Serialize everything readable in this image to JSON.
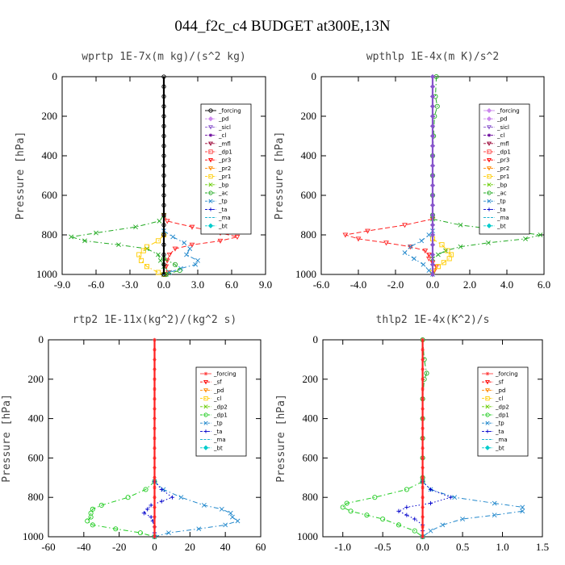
{
  "title": "044_f2c_c4  BUDGET at300E,13N",
  "chart_data": [
    {
      "type": "line",
      "title": "wprtp  1E-7x(m kg)/(s^2 kg)",
      "ylabel": "Pressure [hPa]",
      "xlim": [
        -9,
        9
      ],
      "ylim": [
        1000,
        0
      ],
      "xticks": [
        "-9.0",
        "-6.0",
        "-3.0",
        "0.0",
        "3.0",
        "6.0",
        "9.0"
      ],
      "yticks": [
        "0",
        "200",
        "400",
        "600",
        "800",
        "1000"
      ],
      "legend_position": "top-right",
      "legend": [
        {
          "name": "_forcing",
          "color": "#000000",
          "marker": "circle"
        },
        {
          "name": "_pd",
          "color": "#cc88ee",
          "marker": "diamond"
        },
        {
          "name": "_sicl",
          "color": "#8855cc",
          "marker": "tri"
        },
        {
          "name": "_cl",
          "color": "#660099",
          "marker": "star"
        },
        {
          "name": "_mfl",
          "color": "#990033",
          "marker": "tri"
        },
        {
          "name": "_dp1",
          "color": "#ff4444",
          "marker": "square"
        },
        {
          "name": "_pr3",
          "color": "#ff0000",
          "marker": "tri"
        },
        {
          "name": "_pr2",
          "color": "#ff8800",
          "marker": "tri"
        },
        {
          "name": "_pr1",
          "color": "#ffcc00",
          "marker": "square"
        },
        {
          "name": "_bp",
          "color": "#66cc00",
          "marker": "x"
        },
        {
          "name": "_ac",
          "color": "#22aa22",
          "marker": "circle"
        },
        {
          "name": "_tp",
          "color": "#2288cc",
          "marker": "x"
        },
        {
          "name": "_ta",
          "color": "#0000cc",
          "marker": "plus"
        },
        {
          "name": "_ma",
          "color": "#00aacc",
          "marker": "none"
        },
        {
          "name": "_bt",
          "color": "#00cccc",
          "marker": "diamond"
        }
      ],
      "series": [
        {
          "name": "_pr3",
          "color": "#ff2222",
          "style": "dash",
          "p": [
            700,
            730,
            760,
            790,
            810,
            830,
            850,
            870,
            900,
            930,
            960,
            990,
            1000
          ],
          "v": [
            0,
            0.3,
            2.5,
            5.0,
            6.5,
            5.0,
            2.5,
            1.0,
            0.5,
            0.3,
            0.2,
            0.4,
            0.2
          ]
        },
        {
          "name": "_bp",
          "color": "#22aa22",
          "style": "dashdot",
          "p": [
            700,
            730,
            760,
            790,
            810,
            830,
            850,
            870,
            900,
            930,
            960,
            990,
            1000
          ],
          "v": [
            0,
            -0.4,
            -2.5,
            -6.0,
            -8.2,
            -7.0,
            -4.0,
            -1.5,
            -0.5,
            -0.3,
            0,
            0.5,
            0.2
          ]
        },
        {
          "name": "_pr1",
          "color": "#ffcc00",
          "style": "dashdot",
          "p": [
            800,
            830,
            860,
            880,
            900,
            930,
            960,
            990,
            1000
          ],
          "v": [
            0,
            -0.5,
            -1.5,
            -1.8,
            -2.2,
            -2.0,
            -1.5,
            -0.5,
            0
          ]
        },
        {
          "name": "_tp",
          "color": "#2288cc",
          "style": "dashdot",
          "p": [
            780,
            810,
            840,
            870,
            900,
            930,
            950,
            970,
            990,
            1000
          ],
          "v": [
            0,
            0.8,
            1.8,
            2.3,
            2.0,
            3.0,
            2.8,
            1.5,
            0.5,
            0
          ]
        },
        {
          "name": "_ac",
          "color": "#22aa22",
          "style": "dashdot",
          "p": [
            920,
            950,
            980,
            1000
          ],
          "v": [
            0,
            1.0,
            1.4,
            0.2
          ]
        },
        {
          "name": "_forcing",
          "color": "#000000",
          "style": "solid",
          "p": [
            0,
            50,
            100,
            150,
            200,
            250,
            300,
            350,
            400,
            450,
            500,
            550,
            600,
            650,
            700,
            750,
            800,
            850,
            900,
            950,
            1000
          ],
          "v": [
            0,
            0,
            0,
            0,
            0,
            0,
            0,
            0,
            0,
            0,
            0,
            0,
            0,
            0,
            0,
            0,
            0,
            0,
            0,
            0,
            0
          ]
        }
      ]
    },
    {
      "type": "line",
      "title": "wpthlp  1E-4x(m K)/s^2",
      "ylabel": "Pressure [hPa]",
      "xlim": [
        -6,
        6
      ],
      "ylim": [
        1000,
        0
      ],
      "xticks": [
        "-6.0",
        "-4.0",
        "-2.0",
        "0.0",
        "2.0",
        "4.0",
        "6.0"
      ],
      "yticks": [
        "0",
        "200",
        "400",
        "600",
        "800",
        "1000"
      ],
      "legend_position": "top-right",
      "legend": [
        {
          "name": "_forcing",
          "color": "#cc88ee",
          "marker": "diamond"
        },
        {
          "name": "_pd",
          "color": "#cc88ee",
          "marker": "diamond"
        },
        {
          "name": "_sicl",
          "color": "#8855cc",
          "marker": "tri"
        },
        {
          "name": "_cl",
          "color": "#660099",
          "marker": "star"
        },
        {
          "name": "_mfl",
          "color": "#990033",
          "marker": "tri"
        },
        {
          "name": "_dp1",
          "color": "#ff4444",
          "marker": "square"
        },
        {
          "name": "_pr3",
          "color": "#ff0000",
          "marker": "tri"
        },
        {
          "name": "_pr2",
          "color": "#ff8800",
          "marker": "tri"
        },
        {
          "name": "_pr1",
          "color": "#ffcc00",
          "marker": "square"
        },
        {
          "name": "_bp",
          "color": "#66cc00",
          "marker": "x"
        },
        {
          "name": "_ac",
          "color": "#22aa22",
          "marker": "circle"
        },
        {
          "name": "_tp",
          "color": "#2288cc",
          "marker": "x"
        },
        {
          "name": "_ta",
          "color": "#0000cc",
          "marker": "plus"
        },
        {
          "name": "_ma",
          "color": "#00aacc",
          "marker": "none"
        },
        {
          "name": "_bt",
          "color": "#00cccc",
          "marker": "diamond"
        }
      ],
      "series": [
        {
          "name": "_pr3",
          "color": "#ff2222",
          "style": "dash",
          "p": [
            720,
            750,
            780,
            800,
            820,
            840,
            860,
            880,
            900,
            920,
            940,
            960,
            980,
            1000
          ],
          "v": [
            0,
            -1.5,
            -3.5,
            -4.7,
            -4.0,
            -2.5,
            -1.2,
            -0.4,
            -0.2,
            -0.2,
            0,
            0.2,
            0.1,
            0
          ]
        },
        {
          "name": "_bp",
          "color": "#22aa22",
          "style": "dashdot",
          "p": [
            720,
            750,
            780,
            800,
            820,
            840,
            860,
            880,
            900,
            920
          ],
          "v": [
            0,
            1.5,
            4.0,
            5.8,
            5.0,
            3.0,
            1.5,
            0.7,
            0.3,
            0
          ]
        },
        {
          "name": "_pr1",
          "color": "#ffcc00",
          "style": "dashdot",
          "p": [
            820,
            850,
            880,
            900,
            920,
            940,
            960,
            990
          ],
          "v": [
            0,
            0.5,
            0.8,
            1.0,
            0.9,
            0.6,
            0.3,
            0
          ]
        },
        {
          "name": "_tp",
          "color": "#2288cc",
          "style": "dashdot",
          "p": [
            780,
            800,
            830,
            860,
            890,
            920,
            950,
            980,
            1000
          ],
          "v": [
            0,
            -0.2,
            -0.6,
            -1.2,
            -1.5,
            -1.0,
            -0.5,
            -0.2,
            0
          ]
        },
        {
          "name": "_ac",
          "color": "#22aa22",
          "style": "dashdot",
          "p": [
            0,
            100,
            150,
            200,
            300,
            400,
            500,
            600,
            700
          ],
          "v": [
            0.2,
            0.15,
            0.25,
            0.1,
            0.05,
            0,
            0,
            0,
            0
          ]
        },
        {
          "name": "_forcing",
          "color": "#8855cc",
          "style": "solid",
          "p": [
            0,
            50,
            100,
            150,
            200,
            250,
            300,
            350,
            400,
            450,
            500,
            550,
            600,
            650,
            700,
            750,
            800,
            850,
            900,
            950,
            1000
          ],
          "v": [
            0,
            0,
            0,
            0,
            0,
            0,
            0,
            0,
            0,
            0,
            0,
            0,
            0,
            0,
            0,
            0,
            0,
            0,
            0,
            0,
            0
          ]
        }
      ]
    },
    {
      "type": "line",
      "title": "rtp2  1E-11x(kg^2)/(kg^2 s)",
      "ylabel": "Pressure [hPa]",
      "xlim": [
        -60,
        60
      ],
      "ylim": [
        1000,
        0
      ],
      "xticks": [
        "-60",
        "-40",
        "-20",
        "0",
        "20",
        "40",
        "60"
      ],
      "yticks": [
        "0",
        "200",
        "400",
        "600",
        "800",
        "1000"
      ],
      "legend_position": "top-right",
      "legend": [
        {
          "name": "_forcing",
          "color": "#ff4444",
          "marker": "star"
        },
        {
          "name": "_sf",
          "color": "#ff0000",
          "marker": "tri"
        },
        {
          "name": "_pd",
          "color": "#ff8800",
          "marker": "tri"
        },
        {
          "name": "_cl",
          "color": "#ffcc00",
          "marker": "square"
        },
        {
          "name": "_dp2",
          "color": "#66cc00",
          "marker": "x"
        },
        {
          "name": "_dp1",
          "color": "#22cc22",
          "marker": "circle"
        },
        {
          "name": "_tp",
          "color": "#2288cc",
          "marker": "x"
        },
        {
          "name": "_ta",
          "color": "#0000cc",
          "marker": "plus"
        },
        {
          "name": "_ma",
          "color": "#00aacc",
          "marker": "none"
        },
        {
          "name": "_bt",
          "color": "#00cccc",
          "marker": "diamond"
        }
      ],
      "series": [
        {
          "name": "_dp1",
          "color": "#22cc22",
          "style": "dashdot",
          "p": [
            720,
            760,
            800,
            840,
            860,
            880,
            900,
            920,
            940,
            960,
            980,
            1000
          ],
          "v": [
            0,
            -5,
            -15,
            -30,
            -35,
            -36,
            -36,
            -38,
            -35,
            -22,
            -8,
            0
          ]
        },
        {
          "name": "_tp",
          "color": "#2288cc",
          "style": "dashdot",
          "p": [
            720,
            760,
            800,
            840,
            860,
            880,
            900,
            920,
            940,
            960,
            980,
            1000
          ],
          "v": [
            0,
            5,
            15,
            28,
            38,
            43,
            44,
            47,
            40,
            25,
            8,
            0
          ]
        },
        {
          "name": "_ta",
          "color": "#0000cc",
          "style": "dot",
          "p": [
            720,
            760,
            800,
            820,
            840,
            860,
            880,
            900,
            920,
            950,
            980,
            1000
          ],
          "v": [
            0,
            4,
            10,
            4,
            -2,
            -4,
            -6,
            -2,
            -1,
            0,
            0,
            0
          ]
        },
        {
          "name": "_forcing",
          "color": "#ff2222",
          "style": "solid",
          "p": [
            0,
            50,
            100,
            150,
            200,
            250,
            300,
            350,
            400,
            450,
            500,
            550,
            600,
            650,
            700,
            750,
            800,
            850,
            900,
            950,
            1000
          ],
          "v": [
            0,
            0,
            0,
            0,
            0,
            0,
            0,
            0,
            0,
            0,
            0,
            0,
            0,
            0,
            0,
            0,
            0,
            0,
            0,
            0,
            0
          ]
        }
      ]
    },
    {
      "type": "line",
      "title": "thlp2  1E-4x(K^2)/s",
      "ylabel": "Pressure [hPa]",
      "xlim": [
        -1.25,
        1.5
      ],
      "ylim": [
        1000,
        0
      ],
      "xticks": [
        "-1.0",
        "-0.5",
        "0.0",
        "0.5",
        "1.0",
        "1.5"
      ],
      "xtick_values": [
        -1.0,
        -0.5,
        0.0,
        0.5,
        1.0,
        1.5
      ],
      "yticks": [
        "0",
        "200",
        "400",
        "600",
        "800",
        "1000"
      ],
      "legend_position": "top-right",
      "legend": [
        {
          "name": "_forcing",
          "color": "#ff4444",
          "marker": "star"
        },
        {
          "name": "_sf",
          "color": "#ff0000",
          "marker": "tri"
        },
        {
          "name": "_pd",
          "color": "#ff8800",
          "marker": "tri"
        },
        {
          "name": "_cl",
          "color": "#ffcc00",
          "marker": "square"
        },
        {
          "name": "_dp2",
          "color": "#66cc00",
          "marker": "x"
        },
        {
          "name": "_dp1",
          "color": "#22cc22",
          "marker": "circle"
        },
        {
          "name": "_tp",
          "color": "#2288cc",
          "marker": "x"
        },
        {
          "name": "_ta",
          "color": "#0000cc",
          "marker": "plus"
        },
        {
          "name": "_ma",
          "color": "#00aacc",
          "marker": "none"
        },
        {
          "name": "_bt",
          "color": "#00cccc",
          "marker": "diamond"
        }
      ],
      "series": [
        {
          "name": "_dp1",
          "color": "#22cc22",
          "style": "dashdot",
          "p": [
            720,
            760,
            800,
            830,
            850,
            870,
            890,
            910,
            940,
            970,
            1000
          ],
          "v": [
            0,
            -0.2,
            -0.6,
            -0.95,
            -1.0,
            -0.9,
            -0.7,
            -0.5,
            -0.3,
            -0.1,
            0
          ]
        },
        {
          "name": "_tp",
          "color": "#2288cc",
          "style": "dashdot",
          "p": [
            720,
            760,
            800,
            830,
            850,
            870,
            890,
            910,
            940,
            970,
            1000
          ],
          "v": [
            0,
            0.1,
            0.4,
            0.9,
            1.25,
            1.25,
            0.9,
            0.5,
            0.25,
            0.1,
            0
          ]
        },
        {
          "name": "_ta",
          "color": "#0000cc",
          "style": "dot",
          "p": [
            720,
            760,
            800,
            830,
            850,
            870,
            890,
            910,
            940,
            970,
            1000
          ],
          "v": [
            0,
            0.1,
            0.35,
            0.1,
            -0.2,
            -0.3,
            -0.2,
            -0.1,
            0,
            0,
            0
          ]
        },
        {
          "name": "_ac",
          "color": "#22aa22",
          "style": "dashdot",
          "p": [
            0,
            100,
            170,
            200,
            300,
            400,
            500,
            600,
            700
          ],
          "v": [
            0,
            0.02,
            0.05,
            0.02,
            0,
            0,
            0,
            0,
            0
          ]
        },
        {
          "name": "_forcing",
          "color": "#ff2222",
          "style": "solid",
          "p": [
            0,
            50,
            100,
            150,
            200,
            250,
            300,
            350,
            400,
            450,
            500,
            550,
            600,
            650,
            700,
            750,
            800,
            850,
            900,
            950,
            1000
          ],
          "v": [
            0,
            0,
            0,
            0,
            0,
            0,
            0,
            0,
            0,
            0,
            0,
            0,
            0,
            0,
            0,
            0,
            0,
            0,
            0,
            0,
            0
          ]
        }
      ]
    }
  ]
}
